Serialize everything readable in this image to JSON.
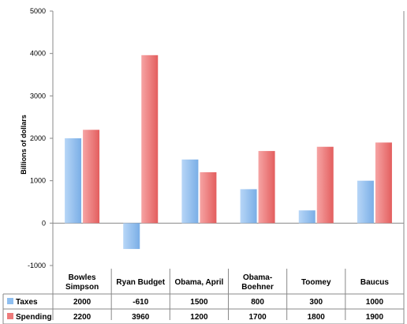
{
  "chart_data": {
    "type": "bar",
    "categories": [
      "Bowles Simpson",
      "Ryan Budget",
      "Obama, April",
      "Obama-Boehner",
      "Toomey",
      "Baucus"
    ],
    "category_lines": [
      [
        "Bowles",
        "Simpson"
      ],
      [
        "Ryan Budget"
      ],
      [
        "Obama, April"
      ],
      [
        "Obama-",
        "Boehner"
      ],
      [
        "Toomey"
      ],
      [
        "Baucus"
      ]
    ],
    "series": [
      {
        "name": "Taxes",
        "values": [
          2000,
          -610,
          1500,
          800,
          300,
          1000
        ],
        "color": "#8fbff0"
      },
      {
        "name": "Spending",
        "values": [
          2200,
          3960,
          1200,
          1700,
          1800,
          1900
        ],
        "color": "#ee7b7b"
      }
    ],
    "ylabel": "Billions of dollars",
    "ylim": [
      -1000,
      5000
    ],
    "yticks": [
      -1000,
      0,
      1000,
      2000,
      3000,
      4000,
      5000
    ],
    "grid": false,
    "legend": "data table",
    "colors": {
      "taxes": "#8fbff0",
      "spending": "#ee7b7b",
      "border": "#888888"
    }
  }
}
